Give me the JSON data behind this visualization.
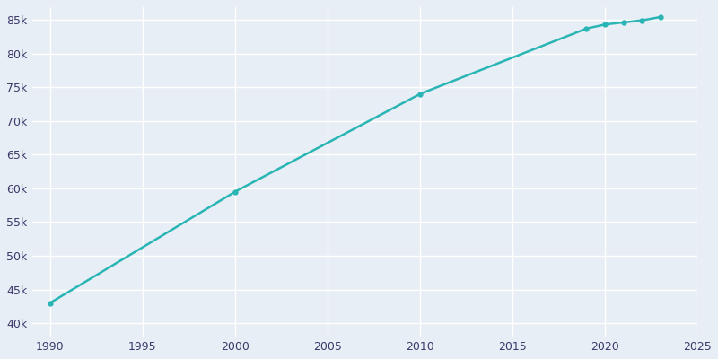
{
  "years": [
    1990,
    2000,
    2010,
    2019,
    2020,
    2021,
    2022,
    2023
  ],
  "population": [
    43000,
    59500,
    74000,
    83700,
    84300,
    84600,
    84900,
    85400
  ],
  "line_color": "#2ab5b5",
  "marker_color": "#2ab5b5",
  "background_color": "#e8eef5",
  "grid_color": "#ffffff",
  "text_color": "#3a3a6a",
  "xlim": [
    1989,
    2025
  ],
  "ylim": [
    38000,
    87000
  ],
  "xticks": [
    1990,
    1995,
    2000,
    2005,
    2010,
    2015,
    2020,
    2025
  ],
  "yticks": [
    40000,
    45000,
    50000,
    55000,
    60000,
    65000,
    70000,
    75000,
    80000,
    85000
  ],
  "figsize": [
    8.0,
    4.0
  ],
  "dpi": 100
}
